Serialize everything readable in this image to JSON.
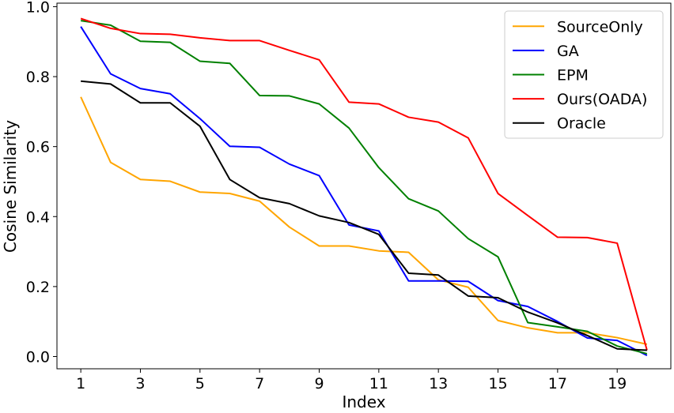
{
  "chart_data": {
    "type": "line",
    "xlabel": "Index",
    "ylabel": "Cosine Similarity",
    "xlim": [
      0.2,
      20.8
    ],
    "ylim": [
      -0.035,
      1.01
    ],
    "xticks": [
      1,
      3,
      5,
      7,
      9,
      11,
      13,
      15,
      17,
      19
    ],
    "xtick_labels": [
      "1",
      "3",
      "5",
      "7",
      "9",
      "11",
      "13",
      "15",
      "17",
      "19"
    ],
    "yticks": [
      0.0,
      0.2,
      0.4,
      0.6,
      0.8,
      1.0
    ],
    "ytick_labels": [
      "0.0",
      "0.2",
      "0.4",
      "0.6",
      "0.8",
      "1.0"
    ],
    "legend_position": "top-right",
    "grid": false,
    "x": [
      1,
      2,
      3,
      4,
      5,
      6,
      7,
      8,
      9,
      10,
      11,
      12,
      13,
      14,
      15,
      16,
      17,
      18,
      19,
      20
    ],
    "series": [
      {
        "name": "SourceOnly",
        "color": "#ffa500",
        "values": [
          0.742,
          0.555,
          0.506,
          0.501,
          0.47,
          0.466,
          0.444,
          0.37,
          0.316,
          0.316,
          0.302,
          0.298,
          0.219,
          0.198,
          0.103,
          0.082,
          0.068,
          0.068,
          0.054,
          0.035
        ]
      },
      {
        "name": "GA",
        "color": "#0000ff",
        "values": [
          0.943,
          0.808,
          0.766,
          0.751,
          0.68,
          0.601,
          0.598,
          0.55,
          0.517,
          0.376,
          0.359,
          0.216,
          0.216,
          0.215,
          0.16,
          0.143,
          0.1,
          0.053,
          0.046,
          0.003
        ]
      },
      {
        "name": "EPM",
        "color": "#008000",
        "values": [
          0.96,
          0.947,
          0.901,
          0.898,
          0.844,
          0.838,
          0.746,
          0.745,
          0.722,
          0.653,
          0.54,
          0.451,
          0.416,
          0.337,
          0.285,
          0.097,
          0.085,
          0.072,
          0.03,
          0.008
        ]
      },
      {
        "name": "Ours(OADA)",
        "color": "#ff0000",
        "values": [
          0.966,
          0.938,
          0.923,
          0.921,
          0.911,
          0.903,
          0.903,
          0.875,
          0.848,
          0.727,
          0.722,
          0.684,
          0.67,
          0.625,
          0.466,
          0.403,
          0.341,
          0.34,
          0.324,
          0.018
        ]
      },
      {
        "name": "Oracle",
        "color": "#000000",
        "values": [
          0.787,
          0.779,
          0.725,
          0.725,
          0.658,
          0.506,
          0.454,
          0.437,
          0.402,
          0.383,
          0.349,
          0.238,
          0.233,
          0.173,
          0.168,
          0.127,
          0.096,
          0.06,
          0.022,
          0.018
        ]
      }
    ]
  }
}
